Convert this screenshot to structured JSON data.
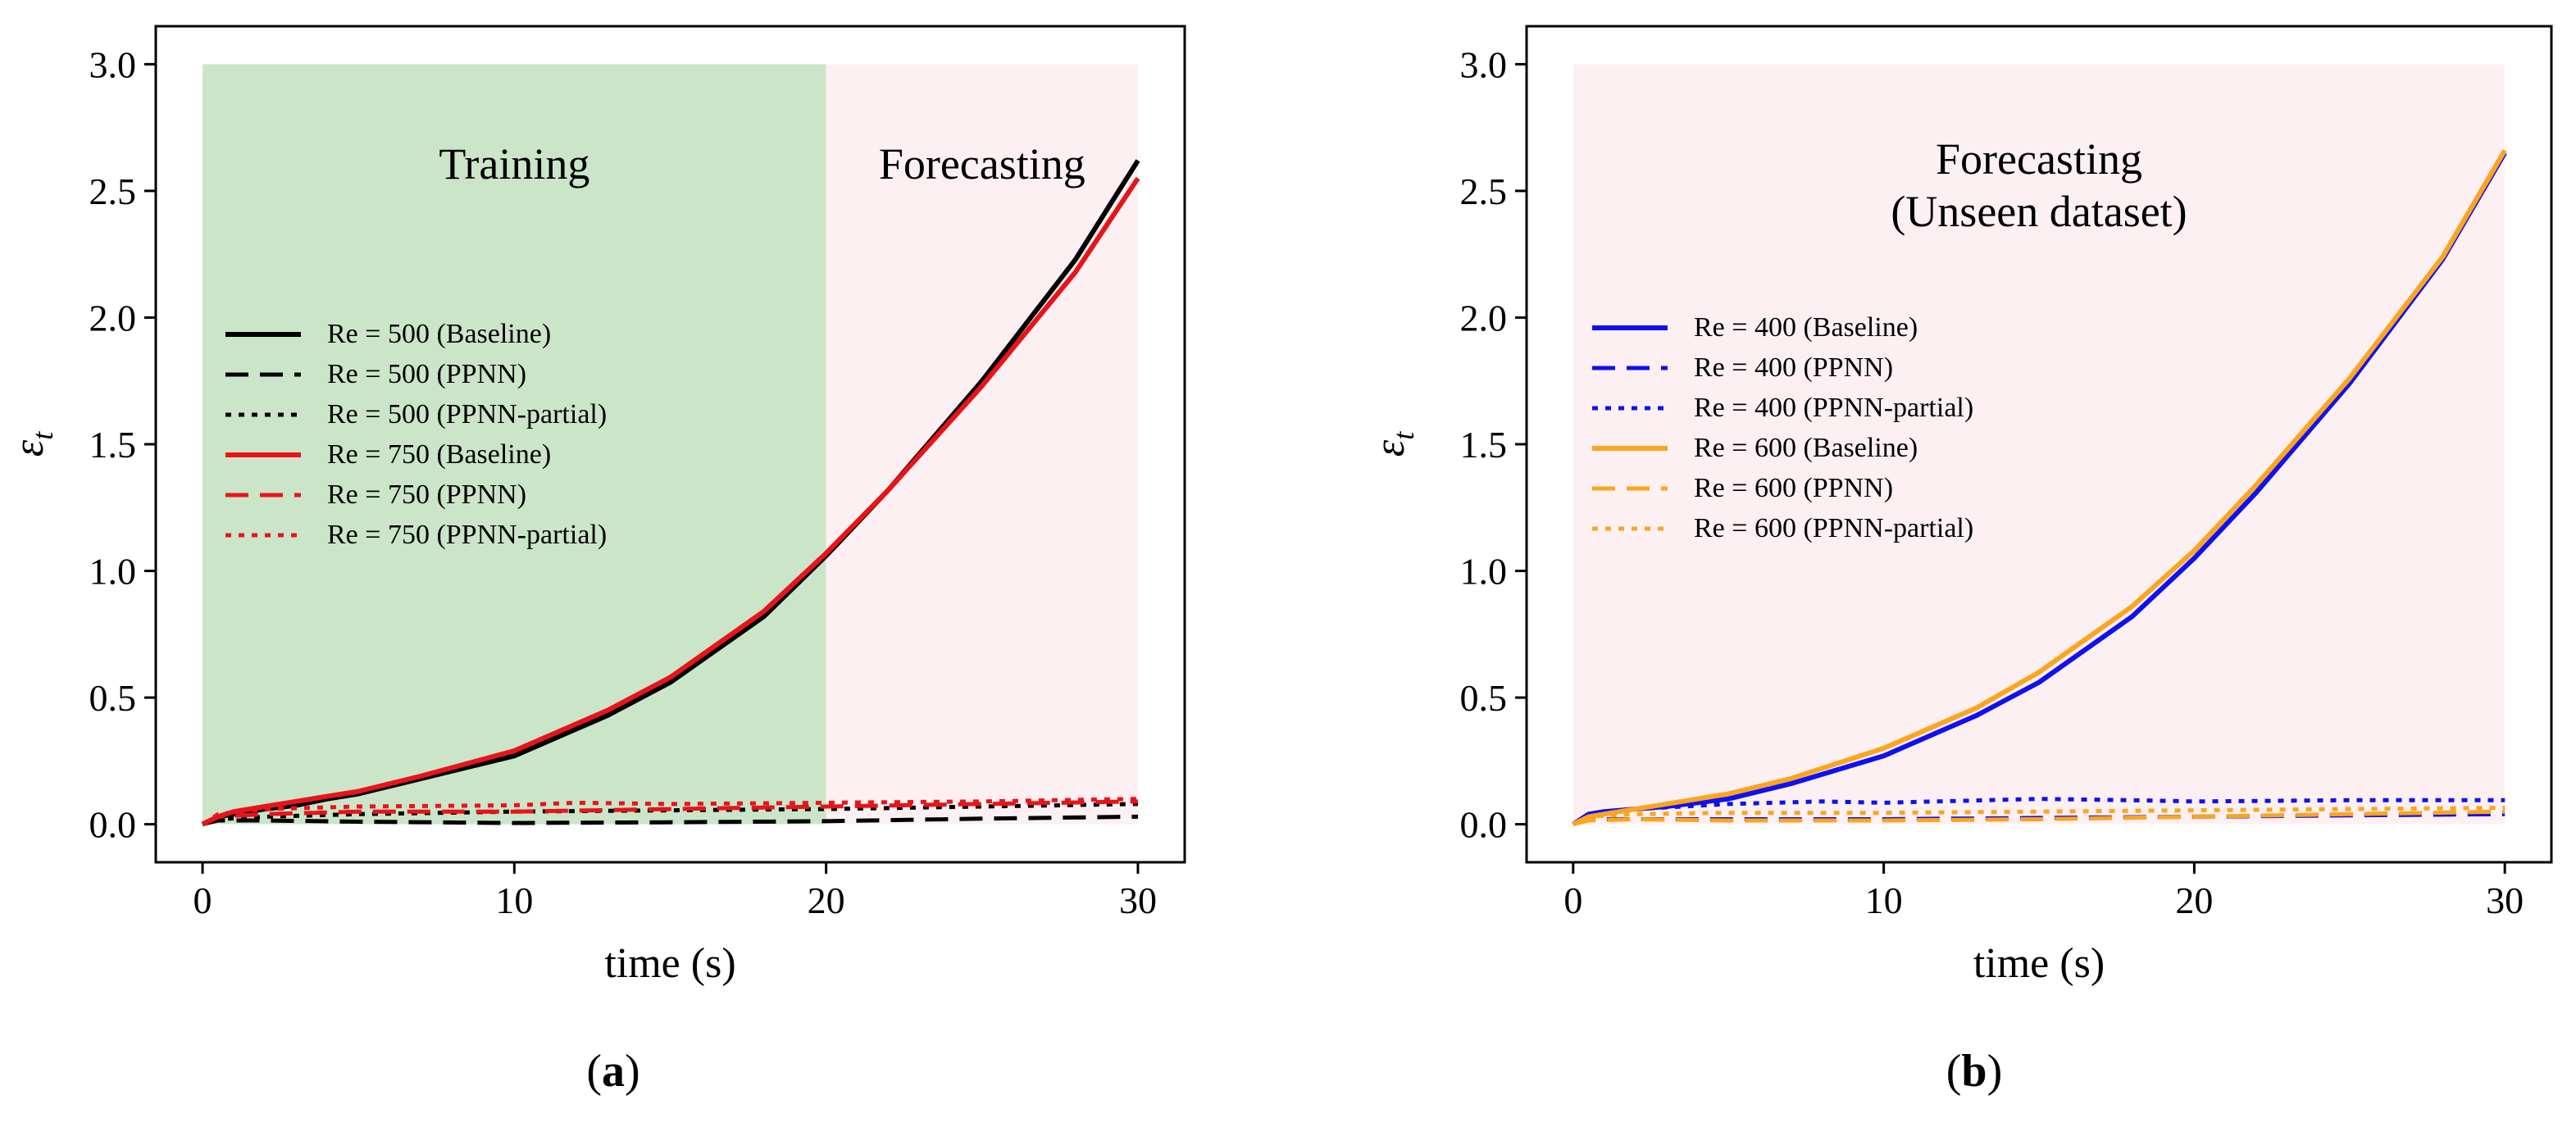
{
  "chart_data": [
    {
      "type": "line",
      "panel_label": "a",
      "xlabel": "time (s)",
      "ylabel": "ε",
      "ylabel_sub": "t",
      "xlim": [
        -1.5,
        31.5
      ],
      "ylim": [
        -0.15,
        3.15
      ],
      "xticks": [
        0,
        10,
        20,
        30
      ],
      "yticks": [
        "0.0",
        "0.5",
        "1.0",
        "1.5",
        "2.0",
        "2.5",
        "3.0"
      ],
      "grid": false,
      "legend_position": "center-left",
      "regions": [
        {
          "label": "Training",
          "x": [
            0,
            20
          ],
          "y": [
            0,
            3.0
          ],
          "color": "#cbe5c9"
        },
        {
          "label": "Forecasting",
          "x": [
            20,
            30
          ],
          "y": [
            0,
            3.0
          ],
          "color": "#fdf0f2"
        }
      ],
      "series": [
        {
          "name": "Re = 500 (Baseline)",
          "color": "#000000",
          "style": "solid",
          "x": [
            0,
            0.5,
            1,
            2,
            3,
            4,
            5,
            7,
            10,
            13,
            15,
            18,
            20,
            22,
            25,
            28,
            30
          ],
          "y": [
            0,
            0.03,
            0.04,
            0.06,
            0.075,
            0.1,
            0.12,
            0.18,
            0.27,
            0.43,
            0.56,
            0.82,
            1.06,
            1.32,
            1.75,
            2.23,
            2.62
          ]
        },
        {
          "name": "Re = 500 (PPNN)",
          "color": "#000000",
          "style": "dashed",
          "x": [
            0,
            0.5,
            2,
            5,
            10,
            15,
            20,
            25,
            30
          ],
          "y": [
            0,
            0.015,
            0.015,
            0.01,
            0.005,
            0.008,
            0.012,
            0.022,
            0.03
          ]
        },
        {
          "name": "Re = 500 (PPNN-partial)",
          "color": "#000000",
          "style": "dotted",
          "x": [
            0,
            0.5,
            2,
            5,
            10,
            15,
            20,
            25,
            30
          ],
          "y": [
            0,
            0.02,
            0.03,
            0.04,
            0.05,
            0.055,
            0.06,
            0.07,
            0.08
          ]
        },
        {
          "name": "Re = 750 (Baseline)",
          "color": "#e8141a",
          "style": "solid",
          "x": [
            0,
            0.5,
            1,
            2,
            3,
            4,
            5,
            7,
            10,
            13,
            15,
            18,
            20,
            22,
            25,
            28,
            30
          ],
          "y": [
            0,
            0.03,
            0.05,
            0.07,
            0.09,
            0.11,
            0.13,
            0.19,
            0.29,
            0.45,
            0.58,
            0.84,
            1.07,
            1.32,
            1.73,
            2.18,
            2.55
          ]
        },
        {
          "name": "Re = 750 (PPNN)",
          "color": "#e8141a",
          "style": "dashed",
          "x": [
            0,
            0.5,
            2,
            5,
            10,
            15,
            20,
            25,
            30
          ],
          "y": [
            0,
            0.03,
            0.04,
            0.05,
            0.05,
            0.06,
            0.07,
            0.08,
            0.09
          ]
        },
        {
          "name": "Re = 750 (PPNN-partial)",
          "color": "#e8141a",
          "style": "dotted",
          "x": [
            0,
            0.5,
            2,
            5,
            10,
            12,
            15,
            20,
            25,
            30
          ],
          "y": [
            0,
            0.04,
            0.06,
            0.07,
            0.075,
            0.085,
            0.08,
            0.085,
            0.09,
            0.1
          ]
        }
      ]
    },
    {
      "type": "line",
      "panel_label": "b",
      "xlabel": "time (s)",
      "ylabel": "ε",
      "ylabel_sub": "t",
      "xlim": [
        -1.5,
        31.5
      ],
      "ylim": [
        -0.15,
        3.15
      ],
      "xticks": [
        0,
        10,
        20,
        30
      ],
      "yticks": [
        "0.0",
        "0.5",
        "1.0",
        "1.5",
        "2.0",
        "2.5",
        "3.0"
      ],
      "grid": false,
      "legend_position": "center-left",
      "regions": [
        {
          "label": "Forecasting",
          "label2": "(Unseen dataset)",
          "x": [
            0,
            30
          ],
          "y": [
            0,
            3.0
          ],
          "color": "#fdf0f2"
        }
      ],
      "series": [
        {
          "name": "Re = 400 (Baseline)",
          "color": "#1010f0",
          "style": "solid",
          "x": [
            0,
            0.5,
            1,
            2,
            3,
            5,
            7,
            10,
            13,
            15,
            18,
            20,
            22,
            25,
            28,
            30
          ],
          "y": [
            0,
            0.04,
            0.05,
            0.06,
            0.07,
            0.1,
            0.16,
            0.27,
            0.43,
            0.56,
            0.82,
            1.05,
            1.31,
            1.74,
            2.23,
            2.65
          ]
        },
        {
          "name": "Re = 400 (PPNN)",
          "color": "#1010f0",
          "style": "dashed",
          "x": [
            0,
            0.5,
            2,
            5,
            10,
            15,
            20,
            25,
            30
          ],
          "y": [
            0,
            0.02,
            0.02,
            0.02,
            0.02,
            0.025,
            0.03,
            0.035,
            0.04
          ]
        },
        {
          "name": "Re = 400 (PPNN-partial)",
          "color": "#1010f0",
          "style": "dotted",
          "x": [
            0,
            0.5,
            2,
            5,
            8,
            10,
            15,
            18,
            20,
            25,
            30
          ],
          "y": [
            0,
            0.04,
            0.06,
            0.08,
            0.09,
            0.085,
            0.1,
            0.095,
            0.09,
            0.095,
            0.095
          ]
        },
        {
          "name": "Re = 600 (Baseline)",
          "color": "#fba51f",
          "style": "solid",
          "x": [
            0,
            0.5,
            1,
            2,
            3,
            5,
            7,
            10,
            13,
            15,
            18,
            20,
            22,
            25,
            28,
            30
          ],
          "y": [
            0,
            0.03,
            0.04,
            0.06,
            0.08,
            0.12,
            0.18,
            0.3,
            0.46,
            0.6,
            0.86,
            1.08,
            1.34,
            1.76,
            2.24,
            2.66
          ]
        },
        {
          "name": "Re = 600 (PPNN)",
          "color": "#fba51f",
          "style": "dashed",
          "x": [
            0,
            0.5,
            2,
            5,
            10,
            15,
            20,
            25,
            30
          ],
          "y": [
            0,
            0.015,
            0.02,
            0.015,
            0.015,
            0.02,
            0.03,
            0.04,
            0.05
          ]
        },
        {
          "name": "Re = 600 (PPNN-partial)",
          "color": "#fba51f",
          "style": "dotted",
          "x": [
            0,
            0.5,
            2,
            5,
            10,
            15,
            20,
            25,
            30
          ],
          "y": [
            0,
            0.03,
            0.04,
            0.045,
            0.045,
            0.05,
            0.055,
            0.06,
            0.065
          ]
        }
      ]
    }
  ]
}
